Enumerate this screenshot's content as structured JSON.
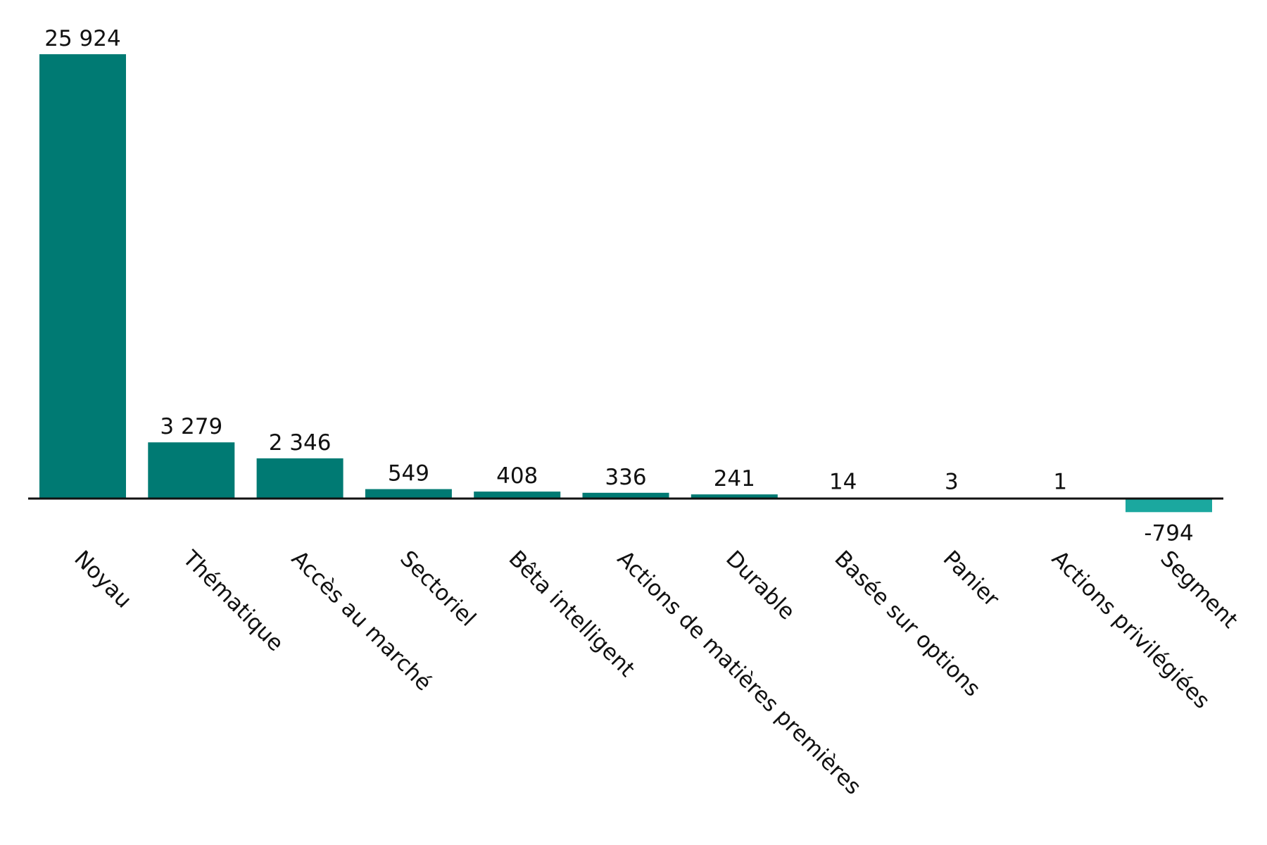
{
  "chart_data": {
    "type": "bar",
    "title": "",
    "xlabel": "",
    "ylabel": "",
    "ylim": [
      -794,
      25924
    ],
    "grid": false,
    "legend": "none",
    "categories": [
      "Noyau",
      "Thématique",
      "Accès au marché",
      "Sectoriel",
      "Bêta intelligent",
      "Actions de matières premières",
      "Durable",
      "Basée sur options",
      "Panier",
      "Actions privilégiées",
      "Segment"
    ],
    "values": [
      25924,
      3279,
      2346,
      549,
      408,
      336,
      241,
      14,
      3,
      1,
      -794
    ],
    "value_labels": [
      "25 924",
      "3 279",
      "2 346",
      "549",
      "408",
      "336",
      "241",
      "14",
      "3",
      "1",
      "-794"
    ],
    "colors": {
      "positive": "#007A73",
      "negative": "#1BA89F",
      "axis": "#111111"
    }
  }
}
